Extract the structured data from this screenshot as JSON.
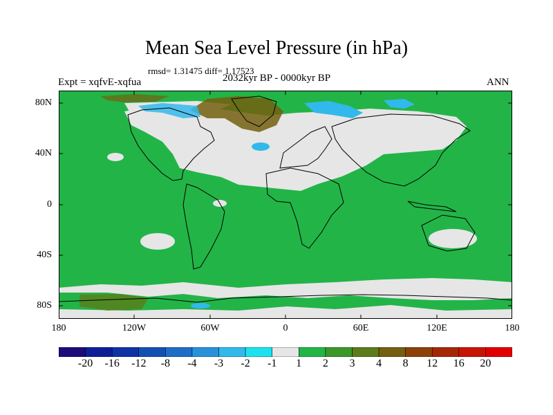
{
  "title": "Mean Sea Level Pressure (in hPa)",
  "stats": "rmsd= 1.31475 diff= 1.17523",
  "experiment": "Expt = xqfvE-xqfua",
  "period": "2032kyr BP - 0000kyr BP",
  "season": "ANN",
  "lat_labels": [
    "80N",
    "40N",
    "0",
    "40S",
    "80S"
  ],
  "lon_labels": [
    "180",
    "120W",
    "60W",
    "0",
    "60E",
    "120E",
    "180"
  ],
  "colorbar": {
    "labels": [
      "-20",
      "-16",
      "-12",
      "-8",
      "-4",
      "-3",
      "-2",
      "-1",
      "1",
      "2",
      "3",
      "4",
      "8",
      "12",
      "16",
      "20"
    ],
    "colors": [
      "#1e0a78",
      "#0f1e96",
      "#0f32a5",
      "#1450b4",
      "#1e6ec8",
      "#2891dc",
      "#32b9eb",
      "#1ee1ee",
      "#e6e6e6",
      "#23b448",
      "#3c9628",
      "#5a7d19",
      "#735f0f",
      "#8c410a",
      "#a52806",
      "#c81405",
      "#e10000"
    ]
  },
  "map": {
    "background": "#23b448",
    "neutral": "#e6e6e6",
    "light_blue": "#32b9eb",
    "brown": "#735f0f"
  }
}
